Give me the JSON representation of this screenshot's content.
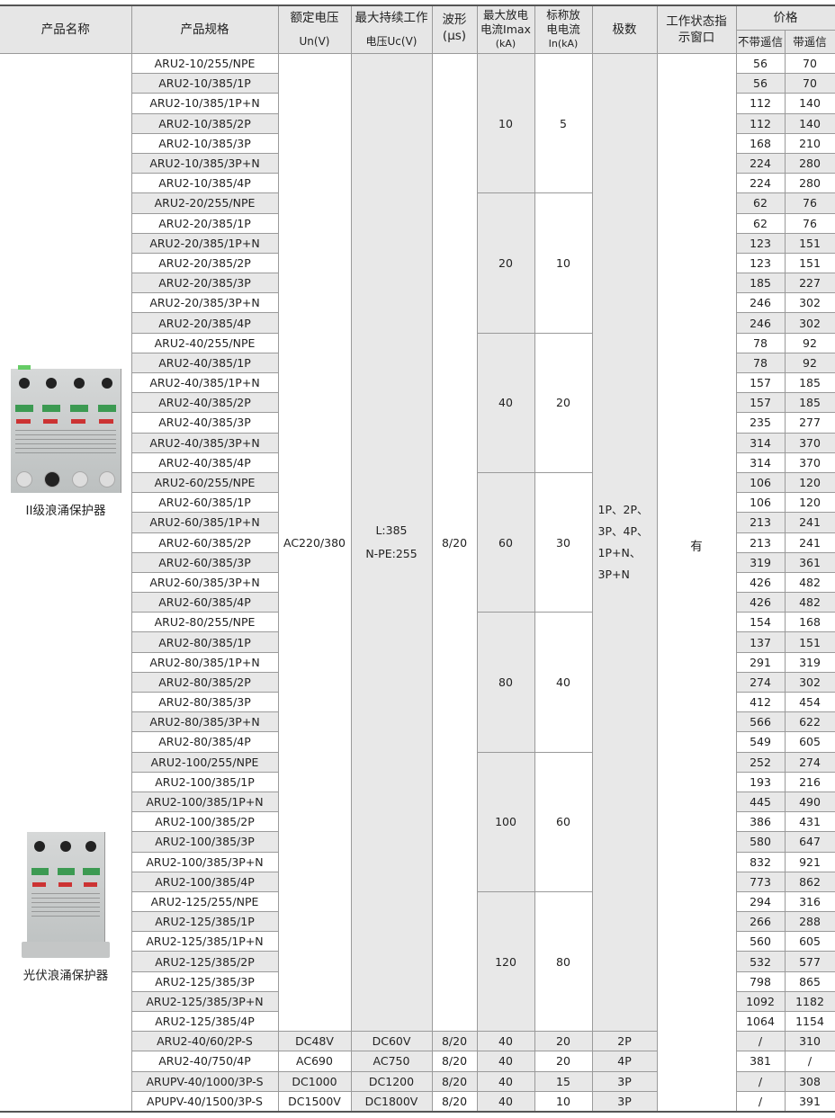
{
  "header": {
    "product_name": "产品名称",
    "product_spec": "产品规格",
    "rated_voltage": [
      "额定电压",
      "Un(V)"
    ],
    "max_cont_voltage": [
      "最大持续工作",
      "电压Uc(V)"
    ],
    "waveform": [
      "波形",
      "(μs)"
    ],
    "imax": [
      "最大放电",
      "电流Imax",
      "(kA)"
    ],
    "in": [
      "标称放",
      "电电流",
      "In(kA)"
    ],
    "poles": "极数",
    "status_window": [
      "工作状态指",
      "示窗口"
    ],
    "price": "价格",
    "price_no_remote": "不带遥信",
    "price_remote": "带遥信"
  },
  "products": [
    {
      "label": "II级浪涌保护器",
      "icon": "surge-protector-4-module-image"
    },
    {
      "label": "光伏浪涌保护器",
      "icon": "pv-surge-protector-3-module-image"
    }
  ],
  "shared": {
    "rated_voltage": "AC220/380",
    "max_cont_voltage": [
      "L:385",
      "N-PE:255"
    ],
    "waveform": "8/20",
    "poles": [
      "1P、2P、",
      "3P、4P、",
      "1P+N、",
      "3P+N"
    ],
    "status_window": "有"
  },
  "groups": [
    {
      "imax": "10",
      "in": "5",
      "rows": [
        [
          "ARU2-10/255/NPE",
          "56",
          "70"
        ],
        [
          "ARU2-10/385/1P",
          "56",
          "70"
        ],
        [
          "ARU2-10/385/1P+N",
          "112",
          "140"
        ],
        [
          "ARU2-10/385/2P",
          "112",
          "140"
        ],
        [
          "ARU2-10/385/3P",
          "168",
          "210"
        ],
        [
          "ARU2-10/385/3P+N",
          "224",
          "280"
        ],
        [
          "ARU2-10/385/4P",
          "224",
          "280"
        ]
      ]
    },
    {
      "imax": "20",
      "in": "10",
      "rows": [
        [
          "ARU2-20/255/NPE",
          "62",
          "76"
        ],
        [
          "ARU2-20/385/1P",
          "62",
          "76"
        ],
        [
          "ARU2-20/385/1P+N",
          "123",
          "151"
        ],
        [
          "ARU2-20/385/2P",
          "123",
          "151"
        ],
        [
          "ARU2-20/385/3P",
          "185",
          "227"
        ],
        [
          "ARU2-20/385/3P+N",
          "246",
          "302"
        ],
        [
          "ARU2-20/385/4P",
          "246",
          "302"
        ]
      ]
    },
    {
      "imax": "40",
      "in": "20",
      "rows": [
        [
          "ARU2-40/255/NPE",
          "78",
          "92"
        ],
        [
          "ARU2-40/385/1P",
          "78",
          "92"
        ],
        [
          "ARU2-40/385/1P+N",
          "157",
          "185"
        ],
        [
          "ARU2-40/385/2P",
          "157",
          "185"
        ],
        [
          "ARU2-40/385/3P",
          "235",
          "277"
        ],
        [
          "ARU2-40/385/3P+N",
          "314",
          "370"
        ],
        [
          "ARU2-40/385/4P",
          "314",
          "370"
        ]
      ]
    },
    {
      "imax": "60",
      "in": "30",
      "rows": [
        [
          "ARU2-60/255/NPE",
          "106",
          "120"
        ],
        [
          "ARU2-60/385/1P",
          "106",
          "120"
        ],
        [
          "ARU2-60/385/1P+N",
          "213",
          "241"
        ],
        [
          "ARU2-60/385/2P",
          "213",
          "241"
        ],
        [
          "ARU2-60/385/3P",
          "319",
          "361"
        ],
        [
          "ARU2-60/385/3P+N",
          "426",
          "482"
        ],
        [
          "ARU2-60/385/4P",
          "426",
          "482"
        ]
      ]
    },
    {
      "imax": "80",
      "in": "40",
      "rows": [
        [
          "ARU2-80/255/NPE",
          "154",
          "168"
        ],
        [
          "ARU2-80/385/1P",
          "137",
          "151"
        ],
        [
          "ARU2-80/385/1P+N",
          "291",
          "319"
        ],
        [
          "ARU2-80/385/2P",
          "274",
          "302"
        ],
        [
          "ARU2-80/385/3P",
          "412",
          "454"
        ],
        [
          "ARU2-80/385/3P+N",
          "566",
          "622"
        ],
        [
          "ARU2-80/385/4P",
          "549",
          "605"
        ]
      ]
    },
    {
      "imax": "100",
      "in": "60",
      "rows": [
        [
          "ARU2-100/255/NPE",
          "252",
          "274"
        ],
        [
          "ARU2-100/385/1P",
          "193",
          "216"
        ],
        [
          "ARU2-100/385/1P+N",
          "445",
          "490"
        ],
        [
          "ARU2-100/385/2P",
          "386",
          "431"
        ],
        [
          "ARU2-100/385/3P",
          "580",
          "647"
        ],
        [
          "ARU2-100/385/3P+N",
          "832",
          "921"
        ],
        [
          "ARU2-100/385/4P",
          "773",
          "862"
        ]
      ]
    },
    {
      "imax": "120",
      "in": "80",
      "rows": [
        [
          "ARU2-125/255/NPE",
          "294",
          "316"
        ],
        [
          "ARU2-125/385/1P",
          "266",
          "288"
        ],
        [
          "ARU2-125/385/1P+N",
          "560",
          "605"
        ],
        [
          "ARU2-125/385/2P",
          "532",
          "577"
        ],
        [
          "ARU2-125/385/3P",
          "798",
          "865"
        ],
        [
          "ARU2-125/385/3P+N",
          "1092",
          "1182"
        ],
        [
          "ARU2-125/385/4P",
          "1064",
          "1154"
        ]
      ]
    }
  ],
  "extra_rows": [
    [
      "ARU2-40/60/2P-S",
      "DC48V",
      "DC60V",
      "8/20",
      "40",
      "20",
      "2P",
      "/",
      "310"
    ],
    [
      "ARU2-40/750/4P",
      "AC690",
      "AC750",
      "8/20",
      "40",
      "20",
      "4P",
      "381",
      "/"
    ],
    [
      "ARUPV-40/1000/3P-S",
      "DC1000",
      "DC1200",
      "8/20",
      "40",
      "15",
      "3P",
      "/",
      "308"
    ],
    [
      "APUPV-40/1500/3P-S",
      "DC1500V",
      "DC1800V",
      "8/20",
      "40",
      "10",
      "3P",
      "/",
      "391"
    ]
  ],
  "colors": {
    "shade": "#e8e8e8",
    "border": "#9a9a9a",
    "terminal_window": "#3c9a52",
    "logo": "#cc3333"
  }
}
